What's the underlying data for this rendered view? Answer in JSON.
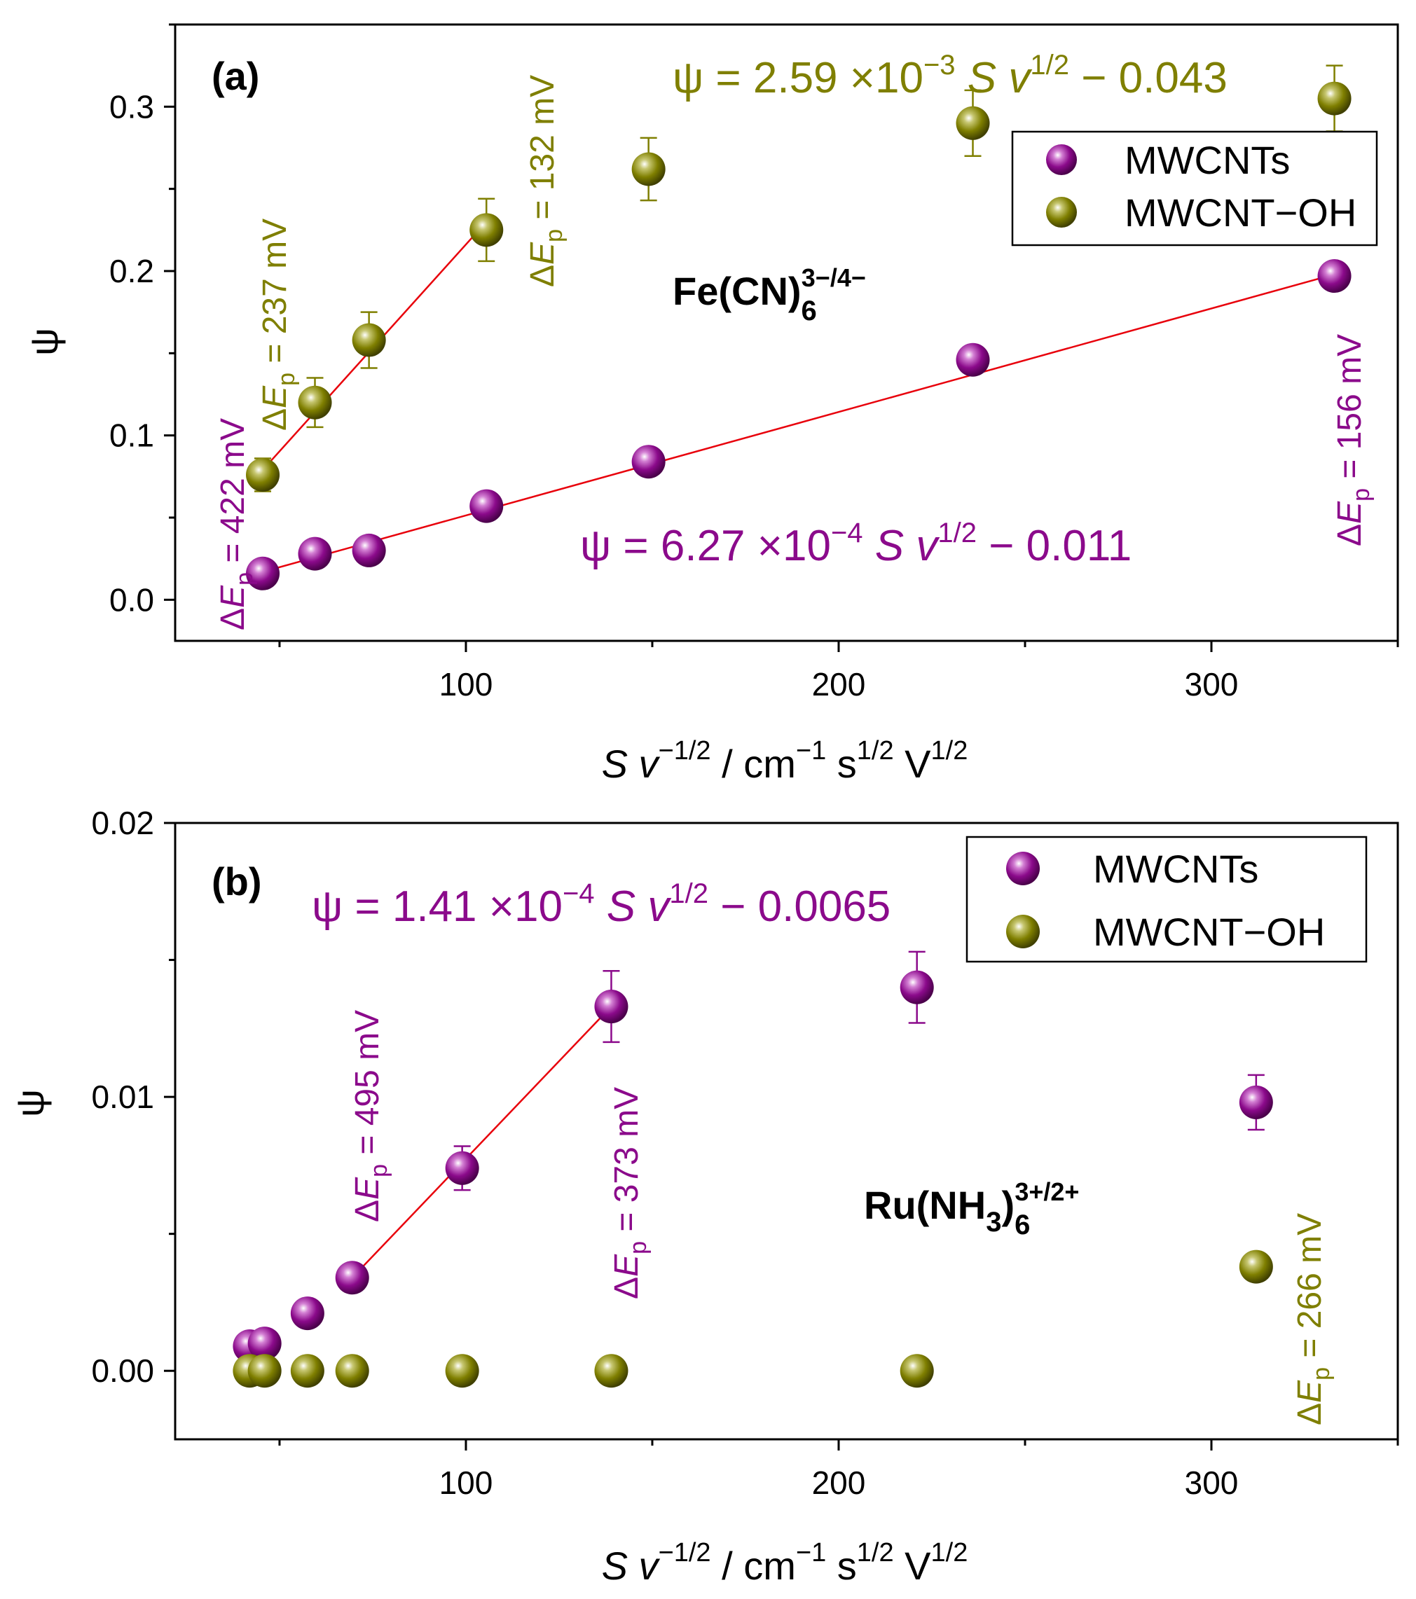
{
  "colors": {
    "purple": "#8B0A8B",
    "olive": "#7F7F00",
    "fit": "#E8000B"
  },
  "chart_data": [
    {
      "type": "scatter",
      "panel_label": "(a)",
      "species": {
        "base": "Fe(CN)",
        "sub": "6",
        "sup": "3−/4−"
      },
      "ylabel": "ψ",
      "xlabel": {
        "S": "S",
        "v": "v",
        "exp": "−1/2",
        "units": "  /  cm",
        "u1": "−1",
        "s": " s",
        "u2": "1/2",
        "V": " V",
        "u3": "1/2"
      },
      "xlim": [
        22,
        350
      ],
      "ylim": [
        -0.025,
        0.35
      ],
      "xticks": [
        100,
        200,
        300
      ],
      "xtick_labels": [
        "100",
        "200",
        "300"
      ],
      "yticks": [
        0.0,
        0.1,
        0.2,
        0.3
      ],
      "ytick_labels": [
        "0.0",
        "0.1",
        "0.2",
        "0.3"
      ],
      "series": [
        {
          "name": "MWCNTs",
          "color": "purple",
          "points": [
            {
              "x": 45.5,
              "y": 0.016,
              "err": 0
            },
            {
              "x": 59.5,
              "y": 0.028,
              "err": 0
            },
            {
              "x": 74,
              "y": 0.03,
              "err": 0
            },
            {
              "x": 105.5,
              "y": 0.057,
              "err": 0
            },
            {
              "x": 149,
              "y": 0.084,
              "err": 0
            },
            {
              "x": 236,
              "y": 0.146,
              "err": 0
            },
            {
              "x": 333,
              "y": 0.197,
              "err": 0
            }
          ],
          "fit": {
            "x": [
              45.5,
              333
            ],
            "y": [
              0.017,
              0.198
            ]
          }
        },
        {
          "name": "MWCNT−OH",
          "color": "olive",
          "points": [
            {
              "x": 45.5,
              "y": 0.076,
              "err": 0.01
            },
            {
              "x": 59.5,
              "y": 0.12,
              "err": 0.015
            },
            {
              "x": 74,
              "y": 0.158,
              "err": 0.017
            },
            {
              "x": 105.5,
              "y": 0.225,
              "err": 0.019
            },
            {
              "x": 149,
              "y": 0.262,
              "err": 0.019
            },
            {
              "x": 236,
              "y": 0.29,
              "err": 0.02
            },
            {
              "x": 333,
              "y": 0.305,
              "err": 0.02
            }
          ],
          "fit": {
            "x": [
              45.5,
              105.5
            ],
            "y": [
              0.079,
              0.23
            ]
          }
        }
      ],
      "legend": [
        "MWCNTs",
        "MWCNT−OH"
      ],
      "equations": [
        {
          "color": "olive",
          "prefix": "ψ = 2.59 ×10",
          "exp": "−3",
          "S": " S",
          "v": " v",
          "pow": "1/2",
          "rest": " − 0.043"
        },
        {
          "color": "purple",
          "prefix": "ψ = 6.27 ×10",
          "exp": "−4",
          "S": " S",
          "v": " v",
          "pow": "1/2",
          "rest": " −  0.011"
        }
      ],
      "annotations": [
        {
          "color": "purple",
          "d": "Δ",
          "E": "E",
          "p": "p",
          "rest": " = 422 mV"
        },
        {
          "color": "olive",
          "d": "Δ",
          "E": "E",
          "p": "p",
          "rest": " = 237 mV"
        },
        {
          "color": "olive",
          "d": "Δ",
          "E": "E",
          "p": "p",
          "rest": " = 132 mV"
        },
        {
          "color": "purple",
          "d": "Δ",
          "E": "E",
          "p": "p",
          "rest": " = 156 mV"
        }
      ]
    },
    {
      "type": "scatter",
      "panel_label": "(b)",
      "species": {
        "base": "Ru(NH",
        "sub1": "3",
        "close": ")",
        "sub": "6",
        "sup": "3+/2+"
      },
      "ylabel": "ψ",
      "xlabel": {
        "S": "S",
        "v": "v",
        "exp": "−1/2",
        "units": "  /  cm",
        "u1": "−1",
        "s": " s",
        "u2": "1/2",
        "V": " V",
        "u3": "1/2"
      },
      "xlim": [
        22,
        350
      ],
      "ylim": [
        -0.0025,
        0.02
      ],
      "xticks": [
        100,
        200,
        300
      ],
      "xtick_labels": [
        "100",
        "200",
        "300"
      ],
      "yticks": [
        0.0,
        0.01,
        0.02
      ],
      "ytick_labels": [
        "0.00",
        "0.01",
        "0.02"
      ],
      "series": [
        {
          "name": "MWCNTs",
          "color": "purple",
          "points": [
            {
              "x": 42,
              "y": 0.0009,
              "err": 0
            },
            {
              "x": 46,
              "y": 0.001,
              "err": 0
            },
            {
              "x": 57.5,
              "y": 0.0021,
              "err": 0
            },
            {
              "x": 69.5,
              "y": 0.0034,
              "err": 0
            },
            {
              "x": 99,
              "y": 0.0074,
              "err": 0.0008
            },
            {
              "x": 139,
              "y": 0.0133,
              "err": 0.0013
            },
            {
              "x": 221,
              "y": 0.014,
              "err": 0.0013
            },
            {
              "x": 312,
              "y": 0.0098,
              "err": 0.001
            }
          ],
          "fit": {
            "x": [
              69.5,
              139
            ],
            "y": [
              0.0034,
              0.0133
            ]
          }
        },
        {
          "name": "MWCNT−OH",
          "color": "olive",
          "points": [
            {
              "x": 42,
              "y": 0.0,
              "err": 0
            },
            {
              "x": 46,
              "y": 0.0,
              "err": 0
            },
            {
              "x": 57.5,
              "y": 0.0,
              "err": 0
            },
            {
              "x": 69.5,
              "y": 0.0,
              "err": 0
            },
            {
              "x": 99,
              "y": 0.0,
              "err": 0
            },
            {
              "x": 139,
              "y": 0.0,
              "err": 0
            },
            {
              "x": 221,
              "y": 0.0,
              "err": 0
            },
            {
              "x": 312,
              "y": 0.0038,
              "err": 0
            }
          ]
        }
      ],
      "legend": [
        "MWCNTs",
        "MWCNT−OH"
      ],
      "equations": [
        {
          "color": "purple",
          "prefix": "ψ = 1.41 ×10",
          "exp": "−4",
          "S": " S",
          "v": " v",
          "pow": "1/2",
          "rest": " − 0.0065"
        }
      ],
      "annotations": [
        {
          "color": "purple",
          "d": "Δ",
          "E": "E",
          "p": "p",
          "rest": " = 495 mV"
        },
        {
          "color": "purple",
          "d": "Δ",
          "E": "E",
          "p": "p",
          "rest": " = 373 mV"
        },
        {
          "color": "olive",
          "d": "Δ",
          "E": "E",
          "p": "p",
          "rest": " = 266 mV"
        }
      ]
    }
  ]
}
